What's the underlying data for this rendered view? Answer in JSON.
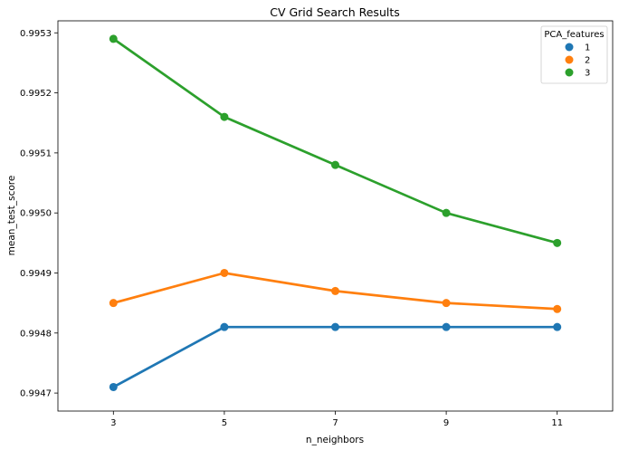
{
  "chart_data": {
    "type": "line",
    "title": "CV Grid Search Results",
    "xlabel": "n_neighbors",
    "ylabel": "mean_test_score",
    "categories": [
      "3",
      "5",
      "7",
      "9",
      "11"
    ],
    "ylim": [
      0.99467,
      0.99532
    ],
    "yticks": [
      "0.9947",
      "0.9948",
      "0.9949",
      "0.9950",
      "0.9951",
      "0.9952",
      "0.9953"
    ],
    "grid": false,
    "legend": {
      "title": "PCA_features",
      "placement": "top-right"
    },
    "series": [
      {
        "name": "1",
        "color": "#1f77b4",
        "values": [
          0.99471,
          0.99481,
          0.99481,
          0.99481,
          0.99481
        ]
      },
      {
        "name": "2",
        "color": "#ff7f0e",
        "values": [
          0.99485,
          0.9949,
          0.99487,
          0.99485,
          0.99484
        ]
      },
      {
        "name": "3",
        "color": "#2ca02c",
        "values": [
          0.99529,
          0.99516,
          0.99508,
          0.995,
          0.99495
        ]
      }
    ]
  }
}
